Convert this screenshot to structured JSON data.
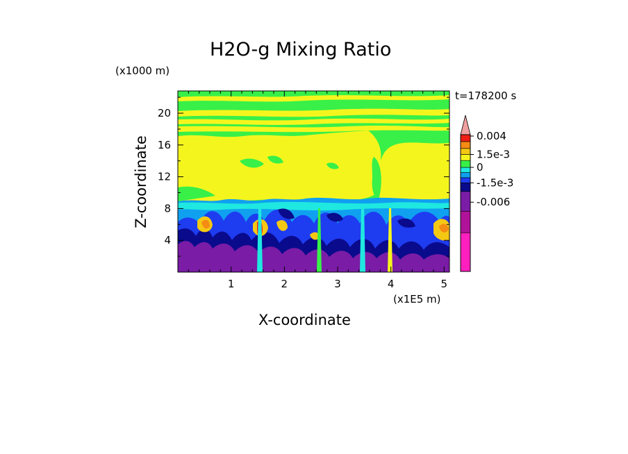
{
  "chart_data": {
    "type": "heatmap",
    "title": "H2O-g Mixing Ratio",
    "xlabel": "X-coordinate",
    "ylabel": "Z-coordinate",
    "x_unit_label": "(x1E5 m)",
    "z_unit_label": "(x1000 m)",
    "time_label": "t=178200 s",
    "xlim": [
      0,
      5.1
    ],
    "ylim": [
      0,
      22.8
    ],
    "x_ticks": [
      {
        "value": 1,
        "label": "1"
      },
      {
        "value": 2,
        "label": "2"
      },
      {
        "value": 3,
        "label": "3"
      },
      {
        "value": 4,
        "label": "4"
      },
      {
        "value": 5,
        "label": "5"
      }
    ],
    "y_ticks": [
      {
        "value": 4,
        "label": "4"
      },
      {
        "value": 8,
        "label": "8"
      },
      {
        "value": 12,
        "label": "12"
      },
      {
        "value": 16,
        "label": "16"
      },
      {
        "value": 20,
        "label": "20"
      }
    ],
    "colorbar": {
      "levels": [
        {
          "color": "#ff1fbf"
        },
        {
          "color": "#b0139a"
        },
        {
          "color": "#7a1ca6"
        },
        {
          "color": "#0a0a8c"
        },
        {
          "color": "#1e3cf0"
        },
        {
          "color": "#10a0f0"
        },
        {
          "color": "#1fe8e0"
        },
        {
          "color": "#38f048"
        },
        {
          "color": "#f5f51e"
        },
        {
          "color": "#f5c814"
        },
        {
          "color": "#f58c14"
        },
        {
          "color": "#ee1e14"
        },
        {
          "color": "#f0a0a0"
        }
      ],
      "tick_labels": [
        "0.004",
        "1.5e-3",
        "0",
        "-1.5e-3",
        "-0.006"
      ]
    }
  }
}
